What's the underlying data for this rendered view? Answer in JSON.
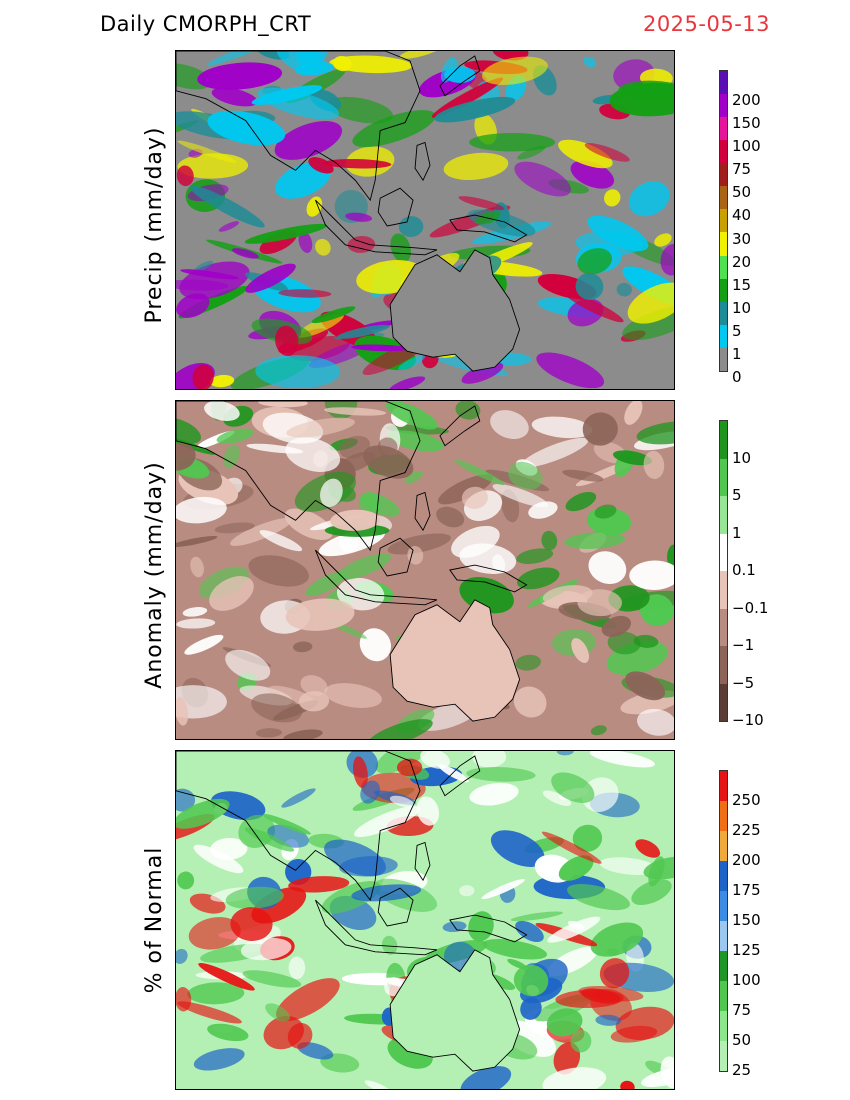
{
  "header": {
    "product": "Daily  CMORPH_CRT",
    "date": "2025-05-13"
  },
  "panels": [
    {
      "ylabel": "Precip  (mm/day)",
      "legend": {
        "labels": [
          "200",
          "150",
          "100",
          "75",
          "50",
          "40",
          "30",
          "20",
          "15",
          "10",
          "5",
          "1",
          "0"
        ],
        "colors": [
          "#5a0fb4",
          "#a000c8",
          "#e6149b",
          "#d2003c",
          "#a01e1e",
          "#aa6414",
          "#c8a000",
          "#f0f000",
          "#50e150",
          "#14a014",
          "#1e8c96",
          "#00c8f0",
          "#8c8c8c"
        ]
      },
      "map": {
        "background": "#8c8c8c",
        "land": "#8c8c8c",
        "blobs": [
          "#00c8f0",
          "#1e8c96",
          "#14a014",
          "#f0f000",
          "#d2003c",
          "#a000c8"
        ]
      }
    },
    {
      "ylabel": "Anomaly  (mm/day)",
      "legend": {
        "labels": [
          "10",
          "5",
          "1",
          "0.1",
          "−0.1",
          "−1",
          "−5",
          "−10"
        ],
        "colors": [
          "#1e961e",
          "#50c850",
          "#96e696",
          "#ffffff",
          "#e8c4b8",
          "#b98c82",
          "#8c6458",
          "#5a3c34"
        ]
      },
      "map": {
        "background": "#b98c82",
        "land": "#e8c4b8",
        "blobs": [
          "#8c6458",
          "#e8c4b8",
          "#1e961e",
          "#50c850",
          "#ffffff"
        ]
      }
    },
    {
      "ylabel": "% of  Normal",
      "legend": {
        "labels": [
          "250",
          "225",
          "200",
          "175",
          "150",
          "125",
          "100",
          "75",
          "50",
          "25"
        ],
        "colors": [
          "#e61414",
          "#f06e14",
          "#f0aa3c",
          "#1e64c8",
          "#3c8ce6",
          "#9bc8f0",
          "#1e9628",
          "#50c850",
          "#8ce68c",
          "#b4f0b4"
        ]
      },
      "map": {
        "background": "#b4f0b4",
        "land": "#b4f0b4",
        "blobs": [
          "#e61414",
          "#1e64c8",
          "#50c850",
          "#ffffff"
        ]
      }
    }
  ]
}
